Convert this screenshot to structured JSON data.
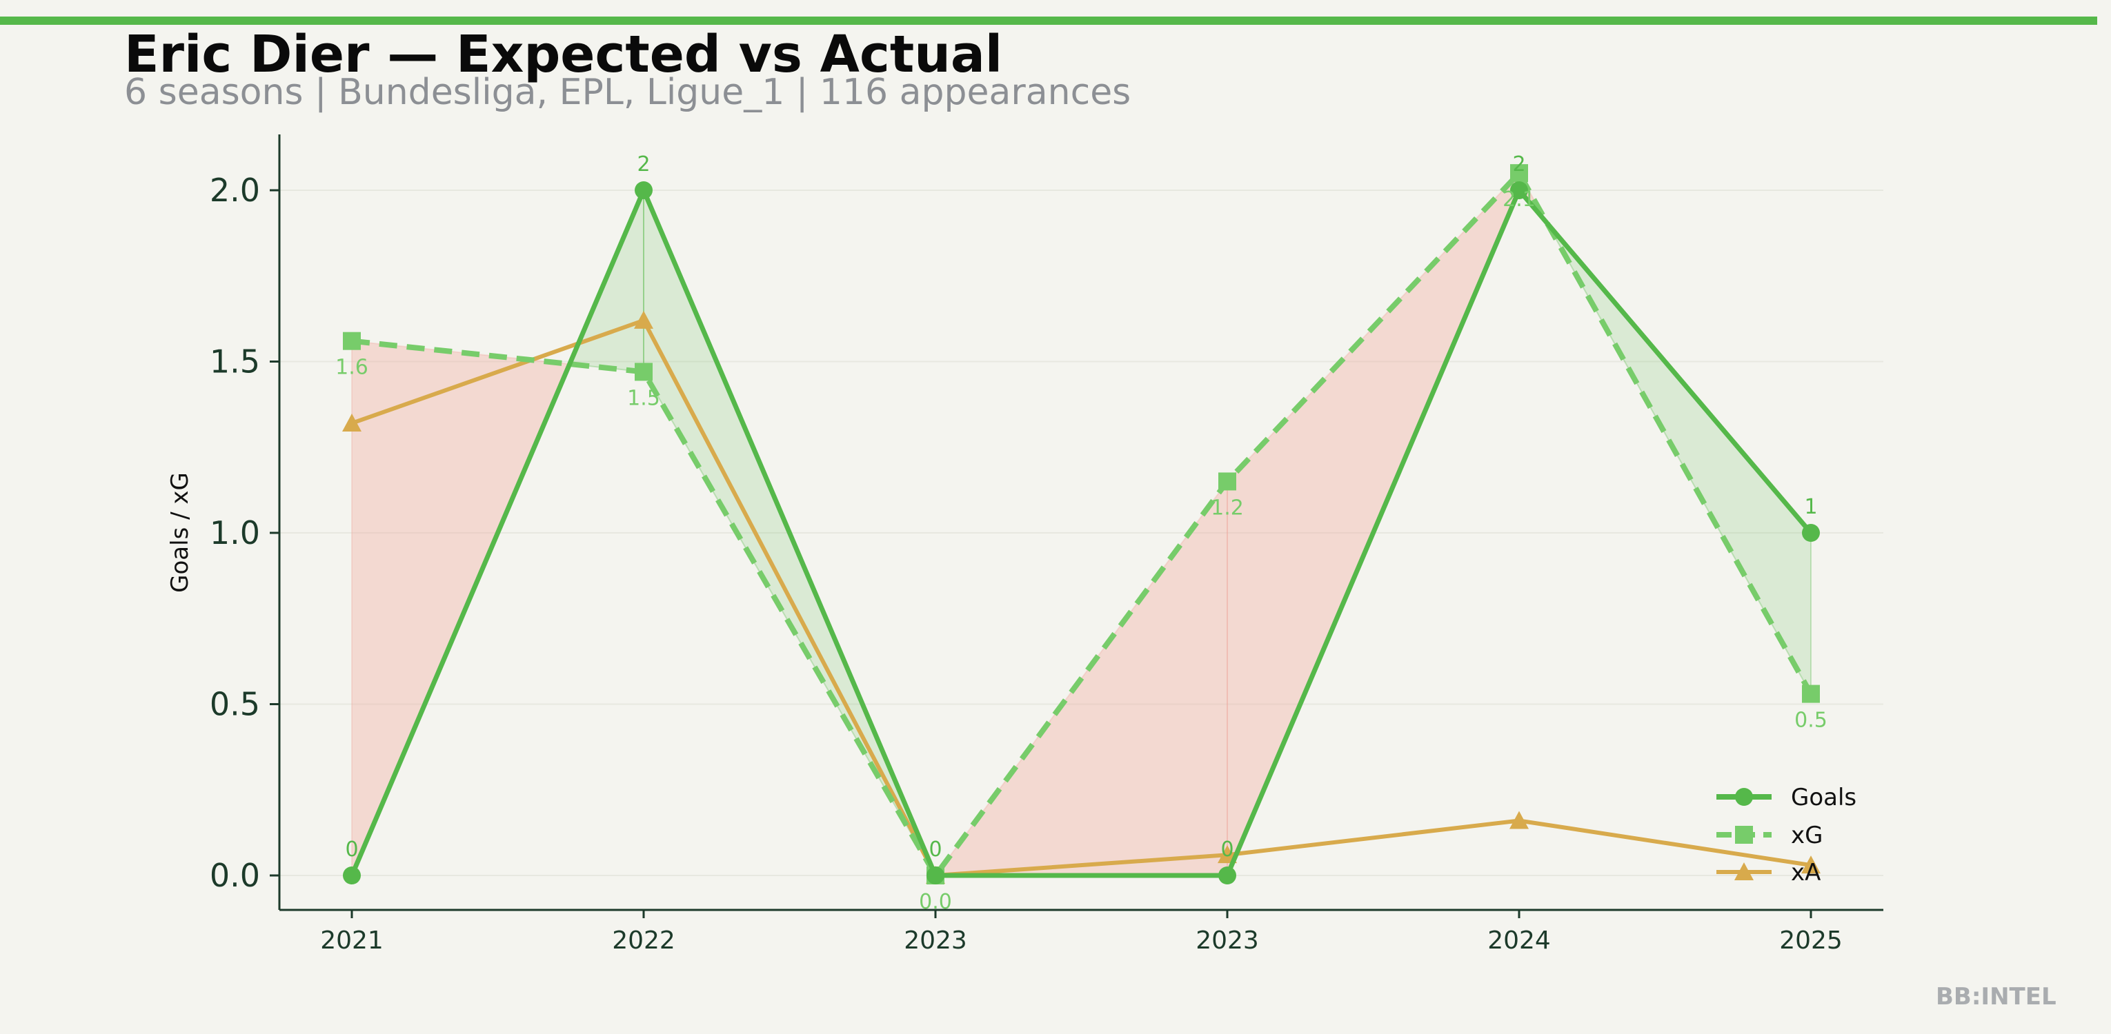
{
  "header": {
    "title": "Eric Dier — Expected vs Actual",
    "subtitle": "6 seasons | Bundesliga, EPL, Ligue_1 | 116 appearances"
  },
  "watermark": "BB:INTEL",
  "colors": {
    "goals": "#55b84a",
    "xg": "#77cc6a",
    "xa": "#d8aa4c",
    "over": "#55b84a",
    "under": "#f0a79b",
    "axis": "#1c3a2a",
    "accent": "#55b84a"
  },
  "chart_data": {
    "type": "line",
    "categories": [
      "2021",
      "2022",
      "2023",
      "2023",
      "2024",
      "2025"
    ],
    "ylabel": "Goals / xG",
    "ylim": [
      -0.1,
      2.17
    ],
    "yticks": [
      "0.0",
      "0.5",
      "1.0",
      "1.5",
      "2.0"
    ],
    "ytick_values": [
      0,
      0.5,
      1.0,
      1.5,
      2.0
    ],
    "grid": true,
    "legend_position": "bottom-right",
    "series": [
      {
        "name": "Goals",
        "key": "goals",
        "marker": "circle",
        "style": "solid",
        "values": [
          0,
          2,
          0,
          0,
          2,
          1
        ],
        "labels": [
          "0",
          "2",
          "0",
          "0",
          "2",
          "1"
        ]
      },
      {
        "name": "xG",
        "key": "xg",
        "marker": "square",
        "style": "dashed",
        "values": [
          1.56,
          1.47,
          0.0,
          1.15,
          2.05,
          0.53
        ],
        "labels": [
          "1.6",
          "1.5",
          "0.0",
          "1.2",
          "2.1",
          "0.5"
        ]
      },
      {
        "name": "xA",
        "key": "xa",
        "marker": "triangle",
        "style": "solid",
        "values": [
          1.32,
          1.62,
          0.0,
          0.06,
          0.16,
          0.03
        ],
        "labels": []
      }
    ]
  }
}
